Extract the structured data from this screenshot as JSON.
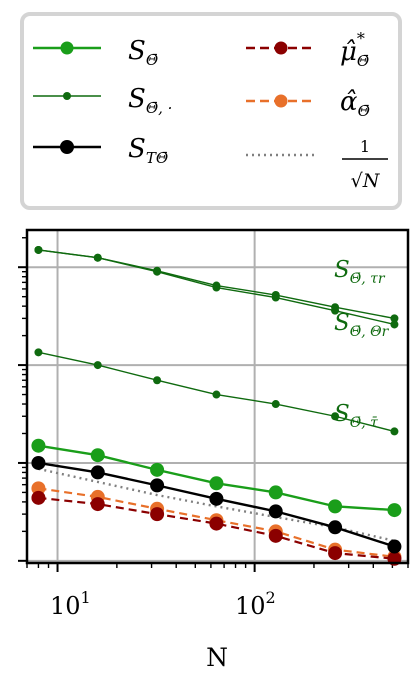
{
  "chart_data": {
    "type": "line",
    "xlabel": "N",
    "xscale": "log",
    "yscale": "log",
    "xlim": [
      7,
      600
    ],
    "x_ticks": [
      {
        "value": 10,
        "base": "10",
        "exp": "1"
      },
      {
        "value": 100,
        "base": "10",
        "exp": "2"
      }
    ],
    "grid": true,
    "legend_position": "above plot, two columns",
    "x": [
      8,
      16,
      32,
      64,
      128,
      256,
      512
    ],
    "series": [
      {
        "key": "S_theta",
        "name": "S_Θ̄",
        "color": "#1a9e1a",
        "style": "solid-large-marker",
        "values": [
          0.15,
          0.12,
          0.085,
          0.062,
          0.05,
          0.036,
          0.033
        ]
      },
      {
        "key": "S_theta_dot_tau",
        "name": "S_Θ̄, τ̄",
        "color": "#0f6a0f",
        "style": "solid-small-marker",
        "values": [
          1.35,
          1.0,
          0.7,
          0.5,
          0.4,
          0.3,
          0.21
        ]
      },
      {
        "key": "S_theta_dot_tau_r",
        "name": "S_Θ̄, τr",
        "color": "#0f6a0f",
        "style": "solid-small-marker",
        "values": [
          15.0,
          12.5,
          9.2,
          6.5,
          5.2,
          3.9,
          3.0
        ]
      },
      {
        "key": "S_theta_dot_Theta_r",
        "name": "S_Θ̄, Θr",
        "color": "#0f6a0f",
        "style": "solid-small-marker",
        "values": [
          15.0,
          12.5,
          9.0,
          6.2,
          4.9,
          3.6,
          2.6
        ]
      },
      {
        "key": "S_T_theta",
        "name": "S_TΘ̄",
        "color": "#000000",
        "style": "solid-large-marker",
        "values": [
          0.1,
          0.08,
          0.059,
          0.043,
          0.032,
          0.022,
          0.014
        ]
      },
      {
        "key": "mu_hat_star",
        "name": "μ̂*_Θ̄",
        "color": "#8b0000",
        "style": "dashed-large-marker",
        "values": [
          0.044,
          0.038,
          0.03,
          0.024,
          0.018,
          0.012,
          0.0105
        ]
      },
      {
        "key": "alpha_hat",
        "name": "α̂_Θ̄",
        "color": "#e8702a",
        "style": "dashed-large-marker",
        "values": [
          0.055,
          0.045,
          0.034,
          0.026,
          0.02,
          0.013,
          0.011
        ]
      },
      {
        "key": "ref",
        "name": "1/√N",
        "color": "#808080",
        "style": "dotted",
        "values": [
          0.087,
          0.064,
          0.047,
          0.036,
          0.028,
          0.022,
          0.016
        ]
      }
    ],
    "legend": {
      "S_theta": {
        "base": "S",
        "sub": "Θ̄"
      },
      "S_theta_dot": {
        "base": "S",
        "sub": "Θ̄, ·"
      },
      "S_T_theta": {
        "base": "S",
        "sub": "TΘ̄"
      },
      "mu": {
        "base": "μ̂",
        "sup": "*",
        "sub": "Θ̄"
      },
      "alpha": {
        "base": "α̂",
        "sub": "Θ̄"
      },
      "ref": {
        "num": "1",
        "den": "√N"
      }
    },
    "annotations": {
      "tau_r": {
        "base": "S",
        "sub": "Θ̄, τr"
      },
      "Theta_r": {
        "base": "S",
        "sub": "Θ̄, Θr"
      },
      "tau_bar": {
        "base": "S",
        "sub": "Θ̄, τ̄"
      }
    }
  }
}
